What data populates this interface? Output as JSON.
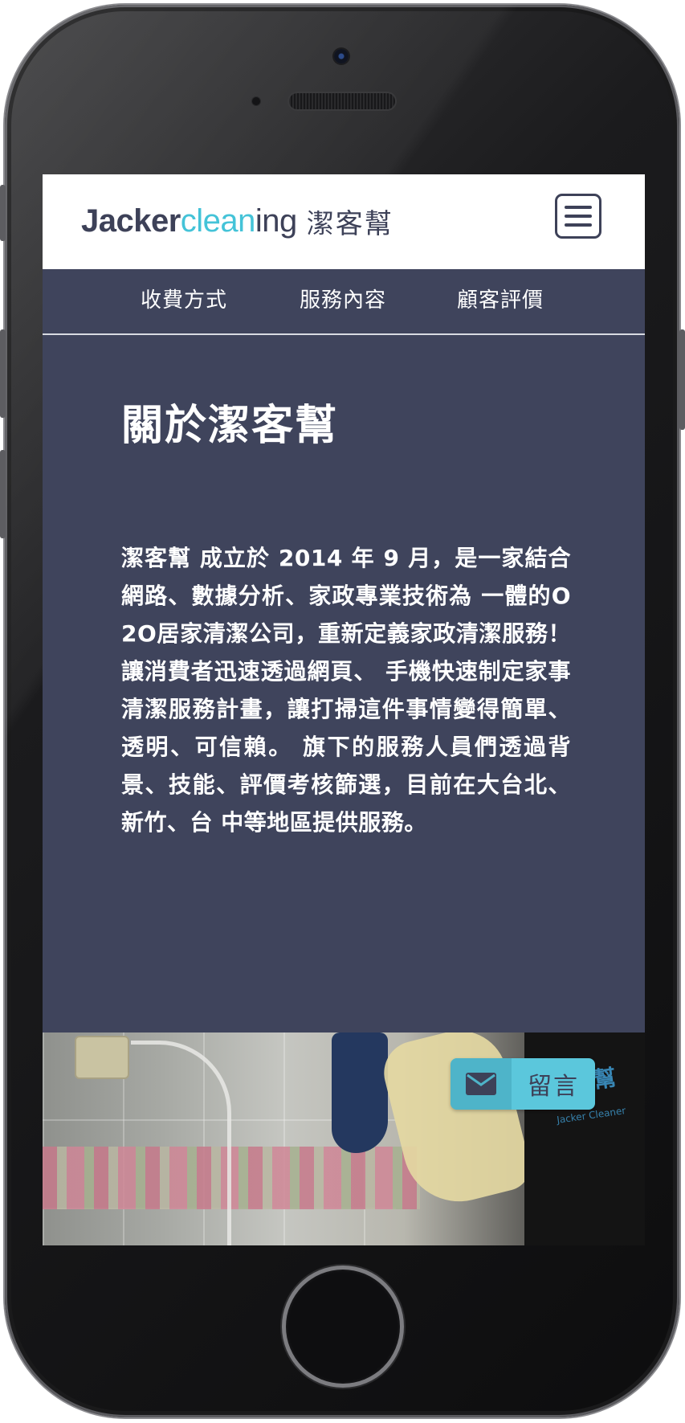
{
  "header": {
    "logo": {
      "part_jacker": "Jacker",
      "part_clean": "clean",
      "part_ing": "ing",
      "part_cn": "潔客幫"
    },
    "menu_icon": "hamburger-menu-icon"
  },
  "nav": {
    "items": [
      {
        "label": "收費方式"
      },
      {
        "label": "服務內容"
      },
      {
        "label": "顧客評價"
      }
    ]
  },
  "about": {
    "title": "關於潔客幫",
    "body": "潔客幫 成立於 2014 年 9 月，是一家結合網路、數據分析、家政專業技術為 一體的O2O居家清潔公司，重新定義家政清潔服務！讓消費者迅速透過網頁、 手機快速制定家事清潔服務計畫，讓打掃這件事情變得簡單、透明、可信賴。 旗下的服務人員們透過背景、技能、評價考核篩選，目前在大台北、新竹、台 中等地區提供服務。"
  },
  "photo": {
    "shirt_print": "潔客幫",
    "shirt_sub": "Jacker Cleaner"
  },
  "message_button": {
    "label": "留言",
    "icon": "envelope-icon"
  },
  "colors": {
    "navy": "#3f445c",
    "accent_cyan": "#44c3d8",
    "button_cyan": "#5bc7dc",
    "white": "#ffffff"
  }
}
